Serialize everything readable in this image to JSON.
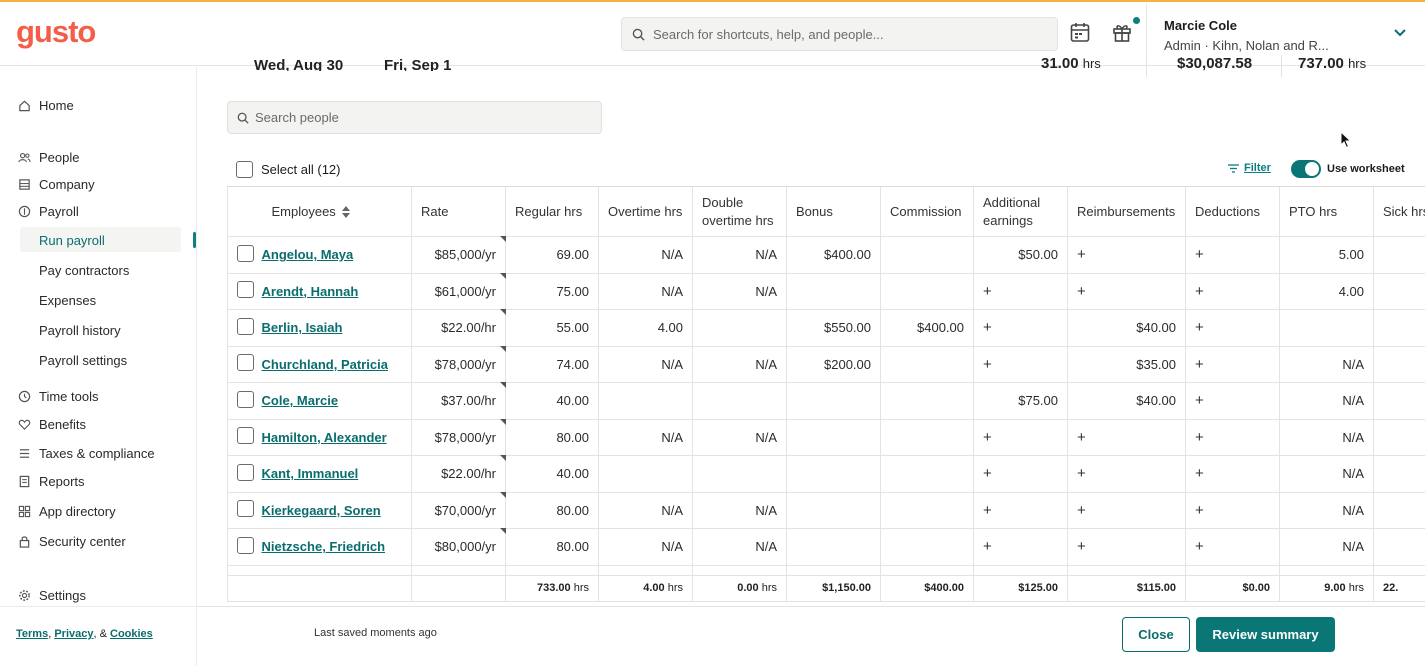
{
  "header": {
    "logo": "gusto",
    "search_placeholder": "Search for shortcuts, help, and people...",
    "user_name": "Marcie Cole",
    "user_role": "Admin · Kihn, Nolan and R..."
  },
  "sidebar": {
    "home": "Home",
    "people": "People",
    "company": "Company",
    "payroll": "Payroll",
    "payroll_items": [
      "Run payroll",
      "Pay contractors",
      "Expenses",
      "Payroll history",
      "Payroll settings"
    ],
    "time_tools": "Time tools",
    "benefits": "Benefits",
    "taxes": "Taxes & compliance",
    "reports": "Reports",
    "app_directory": "App directory",
    "security": "Security center",
    "settings": "Settings",
    "footer": {
      "terms": "Terms",
      "privacy": "Privacy",
      "amp": ", & ",
      "comma": ", ",
      "cookies": "Cookies"
    }
  },
  "summary": {
    "date_start": "Wed, Aug 30",
    "date_end": "Fri, Sep 1",
    "hours": "31.00",
    "hours_unit": "hrs",
    "amount": "$30,087.58",
    "total_hours": "737.00",
    "total_hours_unit": "hrs"
  },
  "people_search_placeholder": "Search people",
  "select_all": "Select all (12)",
  "filter": "Filter",
  "worksheet": "Use worksheet",
  "columns": {
    "employees": "Employees",
    "rate": "Rate",
    "regular": "Regular hrs",
    "overtime": "Overtime hrs",
    "double": "Double overtime hrs",
    "bonus": "Bonus",
    "commission": "Commission",
    "additional": "Additional earnings",
    "reimb": "Reimbursements",
    "deductions": "Deductions",
    "pto": "PTO hrs",
    "sick": "Sick hrs"
  },
  "rows": [
    {
      "name": "Angelou, Maya",
      "rate": "$85,000/yr",
      "regular": "69.00",
      "overtime": "N/A",
      "double": "N/A",
      "bonus": "$400.00",
      "commission": "",
      "additional": "$50.00",
      "reimb": "+",
      "deductions": "+",
      "pto": "5.00"
    },
    {
      "name": "Arendt, Hannah",
      "rate": "$61,000/yr",
      "regular": "75.00",
      "overtime": "N/A",
      "double": "N/A",
      "bonus": "",
      "commission": "",
      "additional": "+",
      "reimb": "+",
      "deductions": "+",
      "pto": "4.00"
    },
    {
      "name": "Berlin, Isaiah",
      "rate": "$22.00/hr",
      "regular": "55.00",
      "overtime": "4.00",
      "double": "",
      "bonus": "$550.00",
      "commission": "$400.00",
      "additional": "+",
      "reimb": "$40.00",
      "deductions": "+",
      "pto": ""
    },
    {
      "name": "Churchland, Patricia",
      "rate": "$78,000/yr",
      "regular": "74.00",
      "overtime": "N/A",
      "double": "N/A",
      "bonus": "$200.00",
      "commission": "",
      "additional": "+",
      "reimb": "$35.00",
      "deductions": "+",
      "pto": "N/A"
    },
    {
      "name": "Cole, Marcie",
      "rate": "$37.00/hr",
      "regular": "40.00",
      "overtime": "",
      "double": "",
      "bonus": "",
      "commission": "",
      "additional": "$75.00",
      "reimb": "$40.00",
      "deductions": "+",
      "pto": "N/A"
    },
    {
      "name": "Hamilton, Alexander",
      "rate": "$78,000/yr",
      "regular": "80.00",
      "overtime": "N/A",
      "double": "N/A",
      "bonus": "",
      "commission": "",
      "additional": "+",
      "reimb": "+",
      "deductions": "+",
      "pto": "N/A"
    },
    {
      "name": "Kant, Immanuel",
      "rate": "$22.00/hr",
      "regular": "40.00",
      "overtime": "",
      "double": "",
      "bonus": "",
      "commission": "",
      "additional": "+",
      "reimb": "+",
      "deductions": "+",
      "pto": "N/A"
    },
    {
      "name": "Kierkegaard, Soren",
      "rate": "$70,000/yr",
      "regular": "80.00",
      "overtime": "N/A",
      "double": "N/A",
      "bonus": "",
      "commission": "",
      "additional": "+",
      "reimb": "+",
      "deductions": "+",
      "pto": "N/A"
    },
    {
      "name": "Nietzsche, Friedrich",
      "rate": "$80,000/yr",
      "regular": "80.00",
      "overtime": "N/A",
      "double": "N/A",
      "bonus": "",
      "commission": "",
      "additional": "+",
      "reimb": "+",
      "deductions": "+",
      "pto": "N/A"
    }
  ],
  "totals": {
    "regular": "733.00",
    "overtime": "4.00",
    "double": "0.00",
    "unit": "hrs",
    "bonus": "$1,150.00",
    "commission": "$400.00",
    "additional": "$125.00",
    "reimb": "$115.00",
    "deductions": "$0.00",
    "pto": "9.00",
    "sick": "22."
  },
  "footer": {
    "saved": "Last saved moments ago",
    "close": "Close",
    "review": "Review summary"
  }
}
